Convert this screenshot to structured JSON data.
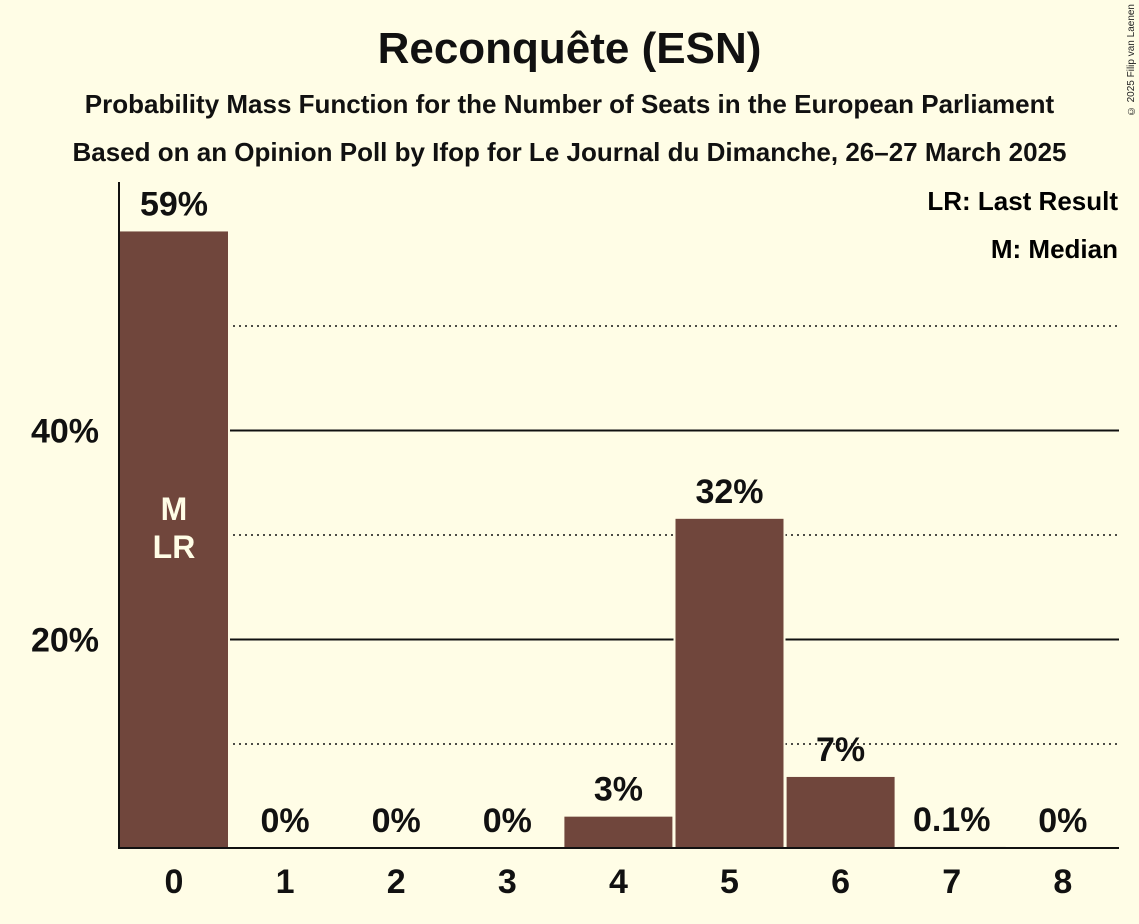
{
  "title": "Reconquête (ESN)",
  "subtitle": "Probability Mass Function for the Number of Seats in the European Parliament",
  "subtitle2": "Based on an Opinion Poll by Ifop for Le Journal du Dimanche, 26–27 March 2025",
  "copyright": "© 2025 Filip van Laenen",
  "legend": {
    "last_result": "LR: Last Result",
    "median": "M: Median"
  },
  "colors": {
    "background": "#FFFDE6",
    "bar": "#70463C",
    "axis": "#111111"
  },
  "chart_data": {
    "type": "bar",
    "categories": [
      "0",
      "1",
      "2",
      "3",
      "4",
      "5",
      "6",
      "7",
      "8"
    ],
    "values": [
      59,
      0,
      0,
      0,
      3,
      31.5,
      6.8,
      0.1,
      0
    ],
    "value_labels": [
      "59%",
      "0%",
      "0%",
      "0%",
      "3%",
      "32%",
      "7%",
      "0.1%",
      "0%"
    ],
    "bar_markers": [
      {
        "category": "0",
        "labels": [
          "M",
          "LR"
        ]
      }
    ],
    "xlabel": "",
    "ylabel": "",
    "ylim": [
      0,
      64
    ],
    "yticks": [
      20,
      40
    ],
    "ytick_labels": [
      "20%",
      "40%"
    ],
    "minor_gridlines": [
      10,
      30,
      50
    ],
    "grid": true,
    "legend_position": "top-right"
  }
}
